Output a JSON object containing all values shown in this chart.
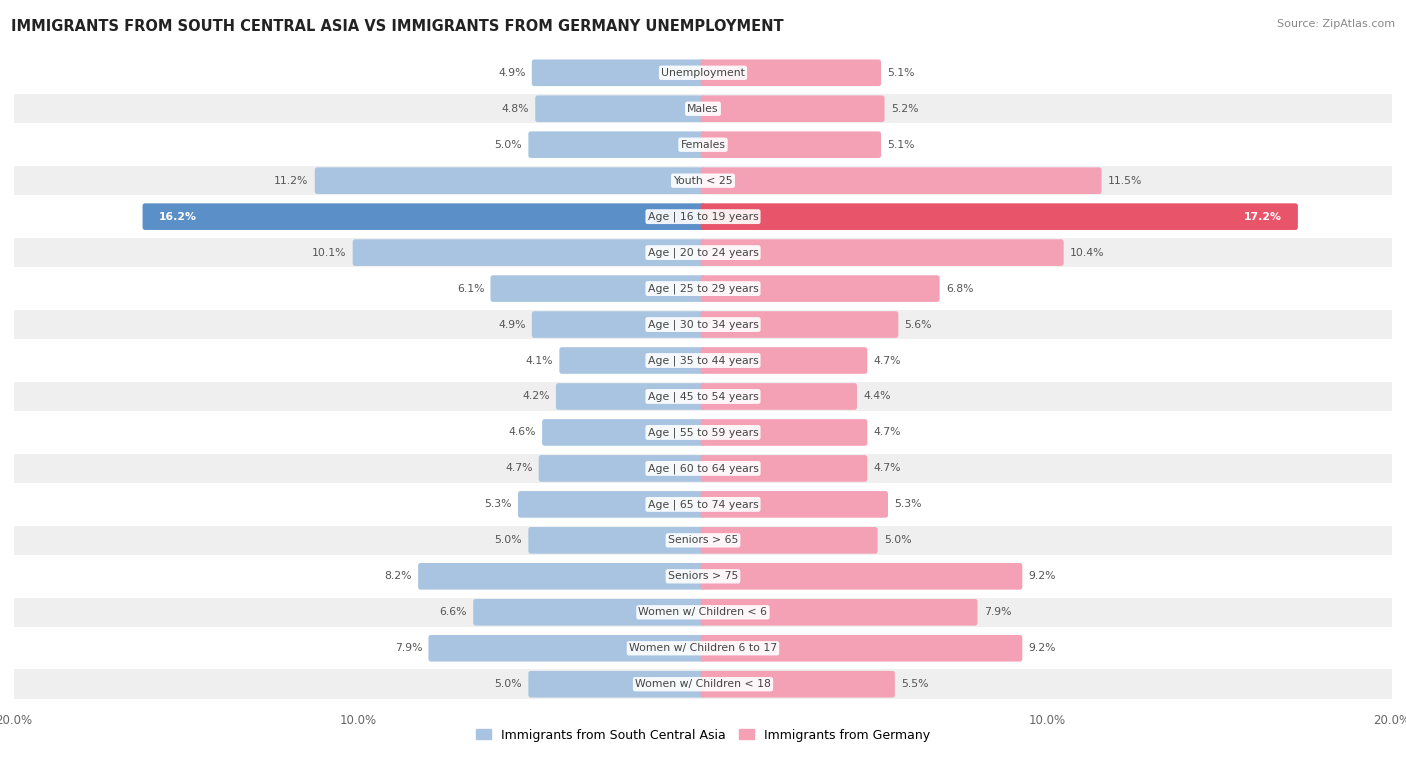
{
  "title": "IMMIGRANTS FROM SOUTH CENTRAL ASIA VS IMMIGRANTS FROM GERMANY UNEMPLOYMENT",
  "source": "Source: ZipAtlas.com",
  "categories": [
    "Unemployment",
    "Males",
    "Females",
    "Youth < 25",
    "Age | 16 to 19 years",
    "Age | 20 to 24 years",
    "Age | 25 to 29 years",
    "Age | 30 to 34 years",
    "Age | 35 to 44 years",
    "Age | 45 to 54 years",
    "Age | 55 to 59 years",
    "Age | 60 to 64 years",
    "Age | 65 to 74 years",
    "Seniors > 65",
    "Seniors > 75",
    "Women w/ Children < 6",
    "Women w/ Children 6 to 17",
    "Women w/ Children < 18"
  ],
  "left_values": [
    4.9,
    4.8,
    5.0,
    11.2,
    16.2,
    10.1,
    6.1,
    4.9,
    4.1,
    4.2,
    4.6,
    4.7,
    5.3,
    5.0,
    8.2,
    6.6,
    7.9,
    5.0
  ],
  "right_values": [
    5.1,
    5.2,
    5.1,
    11.5,
    17.2,
    10.4,
    6.8,
    5.6,
    4.7,
    4.4,
    4.7,
    4.7,
    5.3,
    5.0,
    9.2,
    7.9,
    9.2,
    5.5
  ],
  "left_color": "#a8c4e0",
  "right_color": "#f4a0b5",
  "highlight_left_color": "#5b8fc7",
  "highlight_right_color": "#e8546a",
  "axis_limit": 20.0,
  "left_label": "Immigrants from South Central Asia",
  "right_label": "Immigrants from Germany",
  "legend_left_color": "#a8c4e0",
  "legend_right_color": "#f4a0b5",
  "highlight_indices": [
    4
  ],
  "row_colors": [
    "#ffffff",
    "#efefef"
  ]
}
